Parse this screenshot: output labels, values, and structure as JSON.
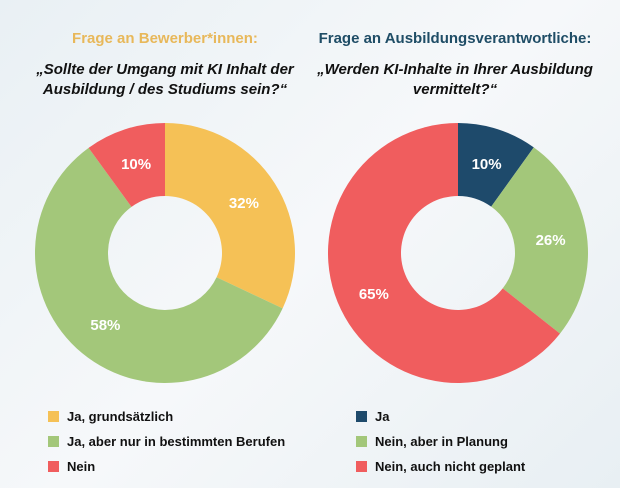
{
  "chart_data": [
    {
      "type": "pie",
      "variant": "donut",
      "title": "Frage an Bewerber*innen:",
      "subtitle": "„Sollte der Umgang mit KI Inhalt der Ausbildung / des Studiums sein?“",
      "title_color": "#e8b85a",
      "categories": [
        "Ja, grundsätzlich",
        "Ja, aber nur in bestimmten Berufen",
        "Nein"
      ],
      "values": [
        32,
        58,
        10
      ],
      "labels": [
        "32%",
        "58%",
        "10%"
      ],
      "colors": [
        "#f5c156",
        "#a3c77a",
        "#f05d5e"
      ],
      "legend": "bottom"
    },
    {
      "type": "pie",
      "variant": "donut",
      "title": "Frage an Ausbildungsverantwortliche:",
      "subtitle": "„Werden KI-Inhalte in Ihrer Ausbildung vermittelt?“",
      "title_color": "#1f4d66",
      "categories": [
        "Ja",
        "Nein, aber in Planung",
        "Nein, auch nicht geplant"
      ],
      "values": [
        10,
        26,
        65
      ],
      "labels": [
        "10%",
        "26%",
        "65%"
      ],
      "colors": [
        "#1e4a6b",
        "#a3c77a",
        "#f05d5e"
      ],
      "legend": "bottom"
    }
  ]
}
